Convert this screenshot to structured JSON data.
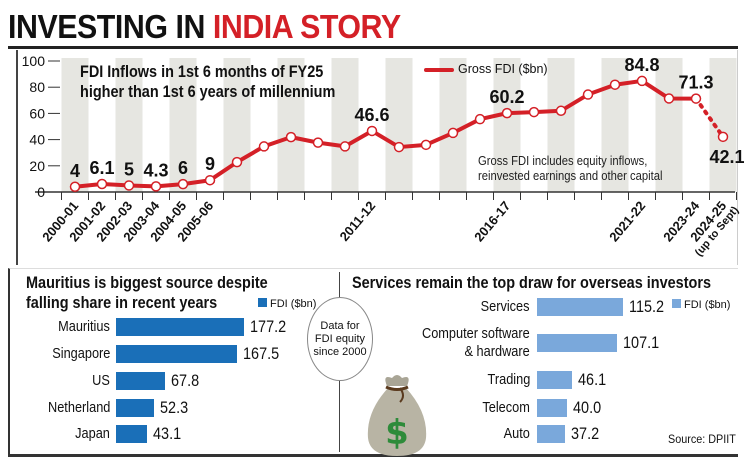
{
  "header": {
    "title_part1": "INVESTING IN ",
    "title_part2": "INDIA STORY"
  },
  "main_chart": {
    "subtitle_line1": "FDI Inflows in 1st 6 months of FY25",
    "subtitle_line2": "higher than 1st 6 years of millennium",
    "note_line1": "Gross FDI includes equity inflows,",
    "note_line2": "reinvested earnings and other capital"
  },
  "left_panel": {
    "title_line1": "Mauritius is biggest source despite",
    "title_line2": "falling share in recent years",
    "legend": "FDI ($bn)"
  },
  "right_panel": {
    "title": "Services remain the top draw for overseas investors",
    "legend": "FDI ($bn)"
  },
  "circle_note": {
    "line1": "Data for",
    "line2": "FDI equity",
    "line3": "since 2000"
  },
  "source": "Source: DPIIT",
  "colors": {
    "line": "#d42027",
    "left_bars": "#1a6fb8",
    "right_bars": "#7aa8db",
    "band": "#e6e6e1"
  },
  "icons": {
    "money_bag": "money-bag-dollar-icon"
  },
  "chart_data": [
    {
      "type": "line",
      "series": [
        {
          "name": "Gross FDI ($bn)",
          "values": [
            4,
            6.1,
            5,
            4.3,
            6,
            9,
            22.8,
            34.8,
            41.9,
            37.7,
            34.8,
            46.6,
            34.3,
            36.0,
            45.1,
            55.6,
            60.2,
            61.0,
            62.0,
            74.4,
            81.9,
            84.8,
            71.4,
            71.3,
            42.1
          ]
        }
      ],
      "categories": [
        "2000-01",
        "2001-02",
        "2002-03",
        "2003-04",
        "2004-05",
        "2005-06",
        "",
        "",
        "",
        "",
        "",
        "2011-12",
        "",
        "",
        "",
        "",
        "2016-17",
        "",
        "",
        "",
        "",
        "2021-22",
        "",
        "2023-24",
        "2024-25 (up to Sept)"
      ],
      "data_labels": [
        "4",
        "6.1",
        "5",
        "4.3",
        "6",
        "9",
        null,
        null,
        null,
        null,
        null,
        "46.6",
        null,
        null,
        null,
        null,
        "60.2",
        null,
        null,
        null,
        null,
        "84.8",
        null,
        "71.3",
        "42.1"
      ],
      "yticks": [
        "0",
        "20",
        "40",
        "60",
        "80",
        "100"
      ],
      "ylim": [
        0,
        100
      ],
      "legend": "top-center",
      "dotted_last_segment": true
    },
    {
      "type": "bar",
      "orientation": "horizontal",
      "categories": [
        "Mauritius",
        "Singapore",
        "US",
        "Netherland",
        "Japan"
      ],
      "values": [
        177.2,
        167.5,
        67.8,
        52.3,
        43.1
      ],
      "value_labels": [
        "177.2",
        "167.5",
        "67.8",
        "52.3",
        "43.1"
      ],
      "legend": "FDI ($bn)"
    },
    {
      "type": "bar",
      "orientation": "horizontal",
      "categories": [
        [
          "Services"
        ],
        [
          "Computer software",
          "& hardware"
        ],
        [
          "Trading"
        ],
        [
          "Telecom"
        ],
        [
          "Auto"
        ]
      ],
      "values": [
        115.2,
        107.1,
        46.1,
        40.0,
        37.2
      ],
      "value_labels": [
        "115.2",
        "107.1",
        "46.1",
        "40.0",
        "37.2"
      ],
      "legend": "FDI ($bn)"
    }
  ]
}
